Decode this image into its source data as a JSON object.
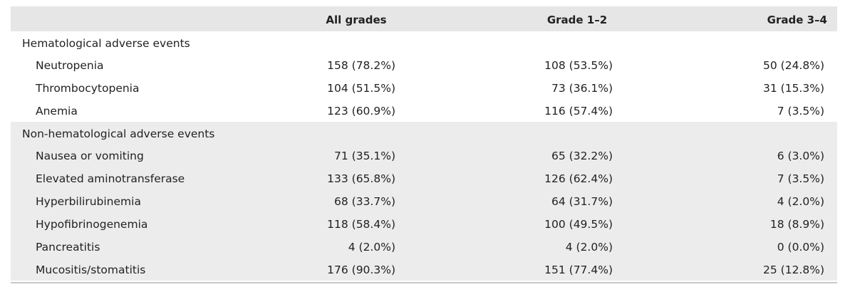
{
  "header": {
    "col1": "All grades",
    "col2": "Grade 1–2",
    "col3": "Grade 3–4"
  },
  "groups": [
    {
      "title": "Hematological adverse events",
      "rows": [
        {
          "label": "Neutropenia",
          "all": "158 (78.2%)",
          "g12": "108 (53.5%)",
          "g34": "50 (24.8%)"
        },
        {
          "label": "Thrombocytopenia",
          "all": "104 (51.5%)",
          "g12": "73 (36.1%)",
          "g34": "31 (15.3%)"
        },
        {
          "label": "Anemia",
          "all": "123 (60.9%)",
          "g12": "116 (57.4%)",
          "g34": "7 (3.5%)"
        }
      ]
    },
    {
      "title": "Non-hematological adverse events",
      "rows": [
        {
          "label": "Nausea or vomiting",
          "all": "71 (35.1%)",
          "g12": "65 (32.2%)",
          "g34": "6 (3.0%)"
        },
        {
          "label": "Elevated aminotransferase",
          "all": "133 (65.8%)",
          "g12": "126 (62.4%)",
          "g34": "7 (3.5%)"
        },
        {
          "label": "Hyperbilirubinemia",
          "all": "68 (33.7%)",
          "g12": "64 (31.7%)",
          "g34": "4 (2.0%)"
        },
        {
          "label": "Hypofibrinogenemia",
          "all": "118 (58.4%)",
          "g12": "100 (49.5%)",
          "g34": "18 (8.9%)"
        },
        {
          "label": "Pancreatitis",
          "all": "4 (2.0%)",
          "g12": "4 (2.0%)",
          "g34": "0 (0.0%)"
        },
        {
          "label": "Mucositis/stomatitis",
          "all": "176 (90.3%)",
          "g12": "151 (77.4%)",
          "g34": "25 (12.8%)"
        }
      ]
    }
  ]
}
